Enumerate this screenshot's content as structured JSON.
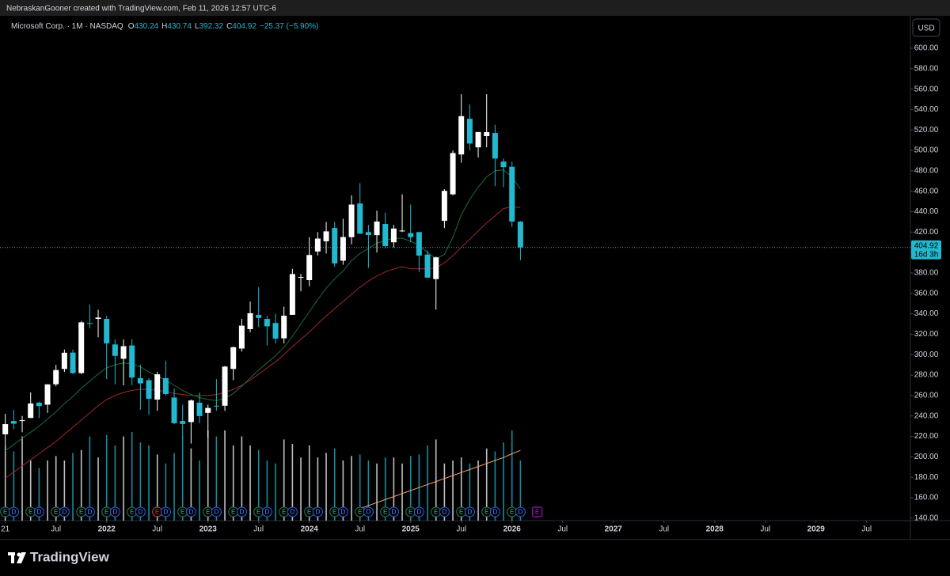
{
  "header": {
    "attribution": "NebraskanGooner created with TradingView.com, Feb 11, 2026 12:57 UTC-6"
  },
  "footer": {
    "brand": "TradingView"
  },
  "chart_data": {
    "type": "candlestick",
    "title": "Microsoft Corp. · 1M · NASDAQ",
    "ohlc_prefixes": [
      "O",
      "H",
      "L",
      "C"
    ],
    "change": "−25.37 (−5.90%)",
    "currency": "USD",
    "countdown": "16d 3h",
    "earnings_label": "E",
    "dividend_label": "D",
    "up_color": "#ffffff",
    "down_color": "#22b8cf",
    "x": [
      "2021-01",
      "2021-02",
      "2021-03",
      "2021-04",
      "2021-05",
      "2021-06",
      "2021-07",
      "2021-08",
      "2021-09",
      "2021-10",
      "2021-11",
      "2021-12",
      "2022-01",
      "2022-02",
      "2022-03",
      "2022-04",
      "2022-05",
      "2022-06",
      "2022-07",
      "2022-08",
      "2022-09",
      "2022-10",
      "2022-11",
      "2022-12",
      "2023-01",
      "2023-02",
      "2023-03",
      "2023-04",
      "2023-05",
      "2023-06",
      "2023-07",
      "2023-08",
      "2023-09",
      "2023-10",
      "2023-11",
      "2023-12",
      "2024-01",
      "2024-02",
      "2024-03",
      "2024-04",
      "2024-05",
      "2024-06",
      "2024-07",
      "2024-08",
      "2024-09",
      "2024-10",
      "2024-11",
      "2024-12",
      "2025-01",
      "2025-02",
      "2025-03",
      "2025-04",
      "2025-05",
      "2025-06",
      "2025-07",
      "2025-08",
      "2025-09",
      "2025-10",
      "2025-11",
      "2025-12",
      "2026-01",
      "2026-02"
    ],
    "open": [
      222,
      235,
      235,
      238,
      253,
      251,
      271,
      286,
      302,
      282,
      331,
      335,
      335,
      310,
      296,
      309,
      277,
      275,
      256,
      277,
      258,
      235,
      234,
      253,
      243,
      250,
      250,
      286,
      306,
      325,
      339,
      335,
      331,
      316,
      339,
      376,
      373,
      401,
      411,
      424,
      392,
      415,
      448,
      420,
      417,
      428,
      410,
      421,
      419,
      420,
      398,
      374,
      431,
      457,
      496,
      531,
      503,
      514,
      517,
      489,
      484,
      430.24
    ],
    "high": [
      242,
      246,
      240,
      263,
      254,
      271,
      290,
      305,
      305,
      333,
      349,
      344,
      338,
      315,
      315,
      315,
      290,
      277,
      283,
      294,
      267,
      251,
      256,
      263,
      251,
      276,
      289,
      308,
      335,
      352,
      366,
      338,
      340,
      347,
      384,
      379,
      415,
      420,
      430,
      430,
      433,
      456,
      468,
      427,
      441,
      439,
      427,
      457,
      447,
      420,
      402,
      396,
      462,
      500,
      555,
      545,
      518,
      555,
      525,
      492,
      489,
      430.74
    ],
    "low": [
      211,
      227,
      224,
      238,
      238,
      243,
      269,
      283,
      281,
      281,
      326,
      317,
      276,
      271,
      270,
      270,
      246,
      241,
      245,
      260,
      232,
      219,
      213,
      233,
      219,
      245,
      245,
      275,
      303,
      322,
      327,
      309,
      311,
      311,
      339,
      362,
      367,
      397,
      399,
      386,
      388,
      408,
      419,
      385,
      400,
      404,
      405,
      420,
      410,
      381,
      376,
      344,
      424,
      456,
      488,
      500,
      493,
      503,
      465,
      464,
      425,
      392.32
    ],
    "close": [
      231.96,
      232.38,
      235.77,
      252.18,
      249.68,
      270.9,
      284.91,
      301.88,
      281.92,
      331.62,
      330.59,
      336.32,
      310.98,
      298.79,
      308.31,
      277.52,
      271.87,
      256.83,
      280.74,
      261.47,
      232.9,
      232.13,
      255.14,
      239.82,
      247.81,
      249.42,
      288.3,
      307.26,
      328.39,
      340.54,
      335.92,
      327.76,
      315.75,
      338.11,
      378.91,
      376.04,
      397.58,
      413.64,
      420.72,
      389.33,
      415.13,
      446.95,
      418.35,
      417.14,
      430.3,
      406.35,
      423.46,
      421.5,
      415.06,
      396.99,
      375.39,
      395.26,
      460.36,
      497.41,
      533.5,
      506.69,
      517.95,
      517.81,
      492.01,
      483.62,
      430.29,
      404.92
    ],
    "volume": [
      500,
      460,
      560,
      400,
      350,
      400,
      430,
      400,
      450,
      470,
      560,
      420,
      570,
      500,
      560,
      590,
      520,
      500,
      440,
      380,
      450,
      560,
      480,
      400,
      600,
      560,
      600,
      500,
      560,
      500,
      470,
      400,
      380,
      540,
      510,
      420,
      500,
      420,
      450,
      480,
      400,
      430,
      440,
      400,
      380,
      420,
      420,
      380,
      430,
      440,
      500,
      540,
      380,
      400,
      420,
      380,
      400,
      480,
      460,
      520,
      600,
      400
    ],
    "volume_ma": {
      "color": "#f0a070",
      "values": [
        null,
        null,
        null,
        null,
        null,
        null,
        null,
        null,
        null,
        null,
        null,
        null,
        null,
        null,
        null,
        null,
        null,
        null,
        null,
        null,
        null,
        null,
        null,
        null,
        null,
        null,
        null,
        null,
        null,
        null,
        null,
        null,
        null,
        null,
        null,
        null,
        null,
        null,
        null,
        null,
        null,
        null,
        80,
        100,
        120,
        140,
        160,
        180,
        200,
        220,
        240,
        260,
        280,
        300,
        320,
        340,
        360,
        380,
        400,
        420,
        445,
        467
      ]
    },
    "ma_fast": {
      "color": "#1f6b3a",
      "values": [
        206,
        212,
        218,
        224,
        230,
        237,
        244,
        252,
        259,
        267,
        274,
        281,
        287,
        290,
        292,
        291,
        288,
        283,
        279,
        275,
        270,
        265,
        261,
        258,
        256,
        255,
        257,
        262,
        269,
        277,
        285,
        292,
        299,
        307,
        318,
        330,
        342,
        354,
        365,
        374,
        382,
        392,
        399,
        404,
        409,
        412,
        414,
        414,
        411,
        407,
        400,
        394,
        398,
        415,
        437,
        452,
        464,
        474,
        480,
        481,
        474,
        462
      ]
    },
    "ma_slow": {
      "color": "#a3262e",
      "values": [
        179,
        185,
        191,
        197,
        203,
        209,
        215,
        222,
        229,
        236,
        243,
        250,
        256,
        260,
        263,
        265,
        266,
        266,
        265,
        264,
        262,
        261,
        260,
        260,
        260,
        261,
        263,
        266,
        270,
        275,
        281,
        287,
        293,
        300,
        308,
        315,
        322,
        330,
        338,
        345,
        352,
        359,
        366,
        372,
        377,
        381,
        384,
        386,
        384,
        384,
        384,
        385,
        390,
        397,
        405,
        413,
        421,
        429,
        436,
        443,
        445,
        444
      ]
    },
    "ylim": [
      137.5,
      624
    ],
    "yticks": [
      {
        "value": 140,
        "label": "140.00"
      },
      {
        "value": 160,
        "label": "160.00"
      },
      {
        "value": 180,
        "label": "180.00"
      },
      {
        "value": 200,
        "label": "200.00"
      },
      {
        "value": 220,
        "label": "220.00"
      },
      {
        "value": 240,
        "label": "240.00"
      },
      {
        "value": 260,
        "label": "260.00"
      },
      {
        "value": 280,
        "label": "280.00"
      },
      {
        "value": 300,
        "label": "300.00"
      },
      {
        "value": 320,
        "label": "320.00"
      },
      {
        "value": 340,
        "label": "340.00"
      },
      {
        "value": 360,
        "label": "360.00"
      },
      {
        "value": 380,
        "label": "380.00"
      },
      {
        "value": 400,
        "label": "400.00"
      },
      {
        "value": 420,
        "label": "420.00"
      },
      {
        "value": 440,
        "label": "440.00"
      },
      {
        "value": 460,
        "label": "460.00"
      },
      {
        "value": 480,
        "label": "480.00"
      },
      {
        "value": 500,
        "label": "500.00"
      },
      {
        "value": 520,
        "label": "520.00"
      },
      {
        "value": 540,
        "label": "540.00"
      },
      {
        "value": 560,
        "label": "560.00"
      },
      {
        "value": 580,
        "label": "580.00"
      },
      {
        "value": 600,
        "label": "600.00"
      }
    ],
    "xticks": [
      {
        "value": "2021-01",
        "label": "21"
      },
      {
        "value": "2021-07",
        "label": "Jul"
      },
      {
        "value": "2022-01",
        "label": "2022"
      },
      {
        "value": "2022-07",
        "label": "Jul"
      },
      {
        "value": "2023-01",
        "label": "2023"
      },
      {
        "value": "2023-07",
        "label": "Jul"
      },
      {
        "value": "2024-01",
        "label": "2024"
      },
      {
        "value": "2024-07",
        "label": "Jul"
      },
      {
        "value": "2025-01",
        "label": "2025"
      },
      {
        "value": "2025-07",
        "label": "Jul"
      },
      {
        "value": "2026-01",
        "label": "2026"
      },
      {
        "value": "2026-07",
        "label": "Jul"
      },
      {
        "value": "2027-01",
        "label": "2027"
      },
      {
        "value": "2027-07",
        "label": "Jul"
      },
      {
        "value": "2028-01",
        "label": "2028"
      },
      {
        "value": "2028-07",
        "label": "Jul"
      },
      {
        "value": "2029-01",
        "label": "2029"
      },
      {
        "value": "2029-07",
        "label": "Jul"
      }
    ],
    "grid": false
  }
}
